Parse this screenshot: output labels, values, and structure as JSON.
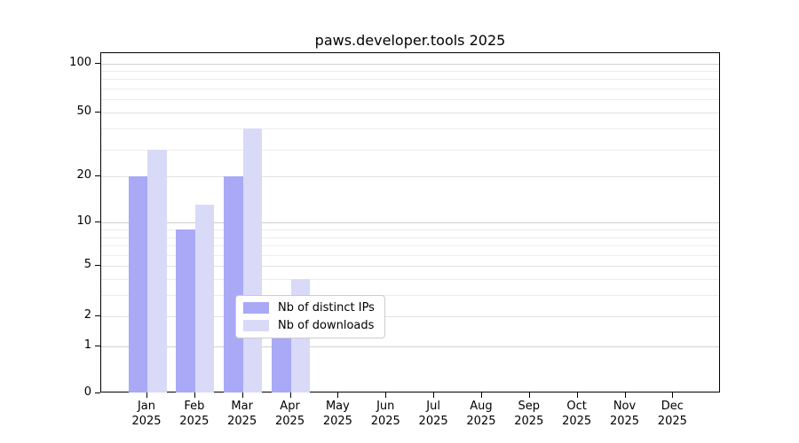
{
  "chart_data": {
    "type": "bar",
    "title": "paws.developer.tools 2025",
    "x_categories": [
      "Jan",
      "Feb",
      "Mar",
      "Apr",
      "May",
      "Jun",
      "Jul",
      "Aug",
      "Sep",
      "Oct",
      "Nov",
      "Dec"
    ],
    "x_year": "2025",
    "series": [
      {
        "name": "Nb of distinct IPs",
        "color": "#a9a9f5",
        "values": [
          20,
          9,
          20,
          3,
          0,
          0,
          0,
          0,
          0,
          0,
          0,
          0
        ]
      },
      {
        "name": "Nb of downloads",
        "color": "#d9d9f8",
        "values": [
          30,
          13,
          40,
          4,
          0,
          0,
          0,
          0,
          0,
          0,
          0,
          0
        ]
      }
    ],
    "y_axis": {
      "tick_labels": [
        0,
        1,
        2,
        5,
        10,
        20,
        50,
        100
      ],
      "scale": "log-like with 0 baseline",
      "anchors": [
        [
          0,
          1.0
        ],
        [
          1,
          0.8607
        ],
        [
          2,
          0.7734
        ],
        [
          3,
          0.7117
        ],
        [
          4,
          0.6641
        ],
        [
          5,
          0.6258
        ],
        [
          6,
          0.5945
        ],
        [
          7,
          0.5651
        ],
        [
          8,
          0.5409
        ],
        [
          9,
          0.519
        ],
        [
          10,
          0.4974
        ],
        [
          20,
          0.362
        ],
        [
          30,
          0.2826
        ],
        [
          40,
          0.2201
        ],
        [
          50,
          0.1745
        ],
        [
          60,
          0.1346
        ],
        [
          70,
          0.1034
        ],
        [
          80,
          0.0763
        ],
        [
          90,
          0.0526
        ],
        [
          100,
          0.0313
        ]
      ]
    },
    "grid": {
      "on": true,
      "decade_values": [
        1,
        10,
        100
      ],
      "decade_color": "#cfcfcf",
      "labeled_color": "#e2e2e2",
      "minor_color": "#ececec"
    },
    "legend": {
      "labels": [
        "Nb of distinct IPs",
        "Nb of downloads"
      ]
    },
    "ylim_bottom_label": "0"
  },
  "colors": {
    "background": "#ffffff",
    "axis": "#000000",
    "text": "#000000",
    "legend_border": "#cccccc"
  }
}
